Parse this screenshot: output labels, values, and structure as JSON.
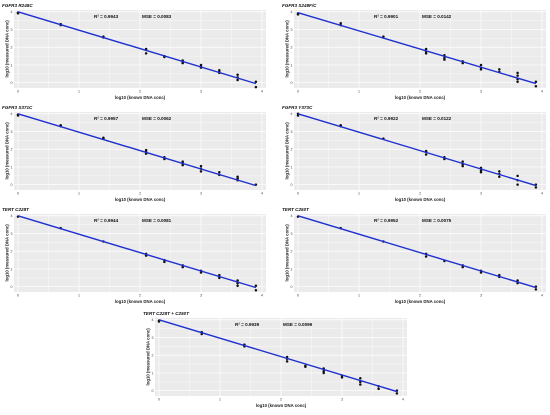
{
  "chart_data": [
    {
      "type": "scatter",
      "title": "FGFR3 R248C",
      "r2_label": "R² = 0.9943",
      "mse_label": "MSE = 0.0083",
      "xlabel": "log10 (known DNA conc)",
      "ylabel": "log10 (measured DNA conc)",
      "xlim": [
        0,
        4
      ],
      "ylim": [
        -0.3,
        4.1
      ],
      "grid": true,
      "x": [
        0,
        0,
        0.7,
        0.7,
        1.4,
        1.4,
        2.1,
        2.1,
        2.1,
        2.4,
        2.4,
        2.7,
        2.7,
        2.7,
        3.0,
        3.0,
        3.0,
        3.3,
        3.3,
        3.3,
        3.6,
        3.6,
        3.6,
        3.9,
        3.9
      ],
      "y": [
        3.95,
        3.92,
        3.3,
        3.25,
        2.6,
        2.55,
        1.9,
        1.85,
        1.65,
        1.5,
        1.45,
        1.25,
        1.15,
        1.1,
        1.0,
        0.9,
        0.85,
        0.7,
        0.6,
        0.55,
        0.45,
        0.3,
        0.15,
        0.05,
        -0.25
      ],
      "fit": [
        [
          0,
          4.0
        ],
        [
          3.9,
          -0.05
        ]
      ]
    },
    {
      "type": "scatter",
      "title": "FGFR3 S249F/C",
      "r2_label": "R² = 0.9901",
      "mse_label": "MSE = 0.0142",
      "xlabel": "log10 (known DNA conc)",
      "ylabel": "log10 (measured DNA conc)",
      "xlim": [
        0,
        4
      ],
      "ylim": [
        -0.3,
        4.1
      ],
      "grid": true,
      "x": [
        0,
        0,
        0.7,
        0.7,
        1.4,
        2.1,
        2.1,
        2.1,
        2.4,
        2.4,
        2.4,
        2.7,
        2.7,
        3.0,
        3.0,
        3.0,
        3.3,
        3.3,
        3.6,
        3.6,
        3.6,
        3.6,
        3.9,
        3.9
      ],
      "y": [
        3.9,
        3.85,
        3.35,
        3.25,
        2.6,
        1.9,
        1.75,
        1.65,
        1.55,
        1.4,
        1.3,
        1.2,
        1.1,
        1.0,
        0.85,
        0.75,
        0.75,
        0.6,
        0.55,
        0.4,
        0.2,
        0.05,
        0.05,
        -0.2
      ],
      "fit": [
        [
          0,
          3.95
        ],
        [
          3.9,
          -0.05
        ]
      ]
    },
    {
      "type": "scatter",
      "title": "FGFR3 S371C",
      "r2_label": "R² = 0.9957",
      "mse_label": "MSE = 0.0062",
      "xlabel": "log10 (known DNA conc)",
      "ylabel": "log10 (measured DNA conc)",
      "xlim": [
        0,
        4
      ],
      "ylim": [
        -0.3,
        4.1
      ],
      "grid": true,
      "x": [
        0,
        0,
        0.7,
        0.7,
        1.4,
        1.4,
        2.1,
        2.1,
        2.1,
        2.4,
        2.4,
        2.7,
        2.7,
        2.7,
        3.0,
        3.0,
        3.0,
        3.3,
        3.3,
        3.6,
        3.6,
        3.6,
        3.9
      ],
      "y": [
        3.95,
        3.9,
        3.35,
        3.3,
        2.65,
        2.6,
        1.95,
        1.85,
        1.75,
        1.55,
        1.45,
        1.3,
        1.2,
        1.1,
        1.05,
        0.9,
        0.75,
        0.7,
        0.55,
        0.45,
        0.35,
        0.25,
        0.0
      ],
      "fit": [
        [
          0,
          4.0
        ],
        [
          3.9,
          -0.05
        ]
      ]
    },
    {
      "type": "scatter",
      "title": "FGFR3 Y373C",
      "r2_label": "R² = 0.9922",
      "mse_label": "MSE = 0.0122",
      "xlabel": "log10 (known DNA conc)",
      "ylabel": "log10 (measured DNA conc)",
      "xlim": [
        0,
        4
      ],
      "ylim": [
        -0.3,
        4.1
      ],
      "grid": true,
      "x": [
        0,
        0,
        0.7,
        0.7,
        1.4,
        2.1,
        2.1,
        2.1,
        2.4,
        2.4,
        2.7,
        2.7,
        2.7,
        3.0,
        3.0,
        3.0,
        3.3,
        3.3,
        3.3,
        3.6,
        3.6,
        3.6,
        3.9,
        3.9
      ],
      "y": [
        4.0,
        3.9,
        3.35,
        3.3,
        2.6,
        1.9,
        1.85,
        1.7,
        1.55,
        1.45,
        1.3,
        1.15,
        1.05,
        0.95,
        0.8,
        0.7,
        0.75,
        0.6,
        0.45,
        0.5,
        0.25,
        0.0,
        0.0,
        -0.15
      ],
      "fit": [
        [
          0,
          4.0
        ],
        [
          3.9,
          -0.05
        ]
      ]
    },
    {
      "type": "scatter",
      "title": "TERT C228T",
      "r2_label": "R² = 0.9944",
      "mse_label": "MSE = 0.0081",
      "xlabel": "log10 (known DNA conc)",
      "ylabel": "log10 (measured DNA conc)",
      "xlim": [
        0,
        4
      ],
      "ylim": [
        -0.3,
        4.1
      ],
      "grid": true,
      "x": [
        0,
        0.7,
        1.4,
        2.1,
        2.1,
        2.4,
        2.4,
        2.7,
        2.7,
        3.0,
        3.0,
        3.3,
        3.3,
        3.6,
        3.6,
        3.6,
        3.9,
        3.9
      ],
      "y": [
        3.95,
        3.3,
        2.55,
        1.85,
        1.75,
        1.5,
        1.4,
        1.2,
        1.1,
        0.9,
        0.8,
        0.65,
        0.5,
        0.35,
        0.2,
        0.05,
        0.05,
        -0.2
      ],
      "fit": [
        [
          0,
          4.0
        ],
        [
          3.9,
          -0.05
        ]
      ]
    },
    {
      "type": "scatter",
      "title": "TERT C250T",
      "r2_label": "R² = 0.9952",
      "mse_label": "MSE = 0.0075",
      "xlabel": "log10 (known DNA conc)",
      "ylabel": "log10 (measured DNA conc)",
      "xlim": [
        0,
        4
      ],
      "ylim": [
        -0.3,
        4.1
      ],
      "grid": true,
      "x": [
        0,
        0.7,
        1.4,
        2.1,
        2.1,
        2.4,
        2.7,
        2.7,
        3.0,
        3.0,
        3.3,
        3.3,
        3.6,
        3.6,
        3.9,
        3.9
      ],
      "y": [
        3.95,
        3.3,
        2.55,
        1.85,
        1.7,
        1.45,
        1.2,
        1.1,
        0.9,
        0.8,
        0.65,
        0.55,
        0.35,
        0.2,
        0.0,
        -0.15
      ],
      "fit": [
        [
          0,
          4.0
        ],
        [
          3.9,
          -0.05
        ]
      ]
    },
    {
      "type": "scatter",
      "title": "TERT C228T + C250T",
      "r2_label": "R² = 0.9939",
      "mse_label": "MSE = 0.0099",
      "xlabel": "log10 (known DNA conc)",
      "ylabel": "log10 (measured DNA conc)",
      "xlim": [
        0,
        4
      ],
      "ylim": [
        -0.3,
        4.1
      ],
      "grid": true,
      "x": [
        0,
        0,
        0.7,
        0.7,
        1.4,
        1.4,
        2.1,
        2.1,
        2.1,
        2.4,
        2.4,
        2.7,
        2.7,
        2.7,
        3.0,
        3.0,
        3.3,
        3.3,
        3.3,
        3.6,
        3.6,
        3.9,
        3.9
      ],
      "y": [
        3.95,
        3.9,
        3.3,
        3.2,
        2.6,
        2.5,
        1.9,
        1.8,
        1.65,
        1.4,
        1.35,
        1.25,
        1.1,
        1.0,
        0.85,
        0.75,
        0.7,
        0.5,
        0.35,
        0.25,
        0.1,
        0.0,
        -0.15
      ],
      "fit": [
        [
          0,
          4.0
        ],
        [
          3.9,
          -0.05
        ]
      ]
    }
  ]
}
